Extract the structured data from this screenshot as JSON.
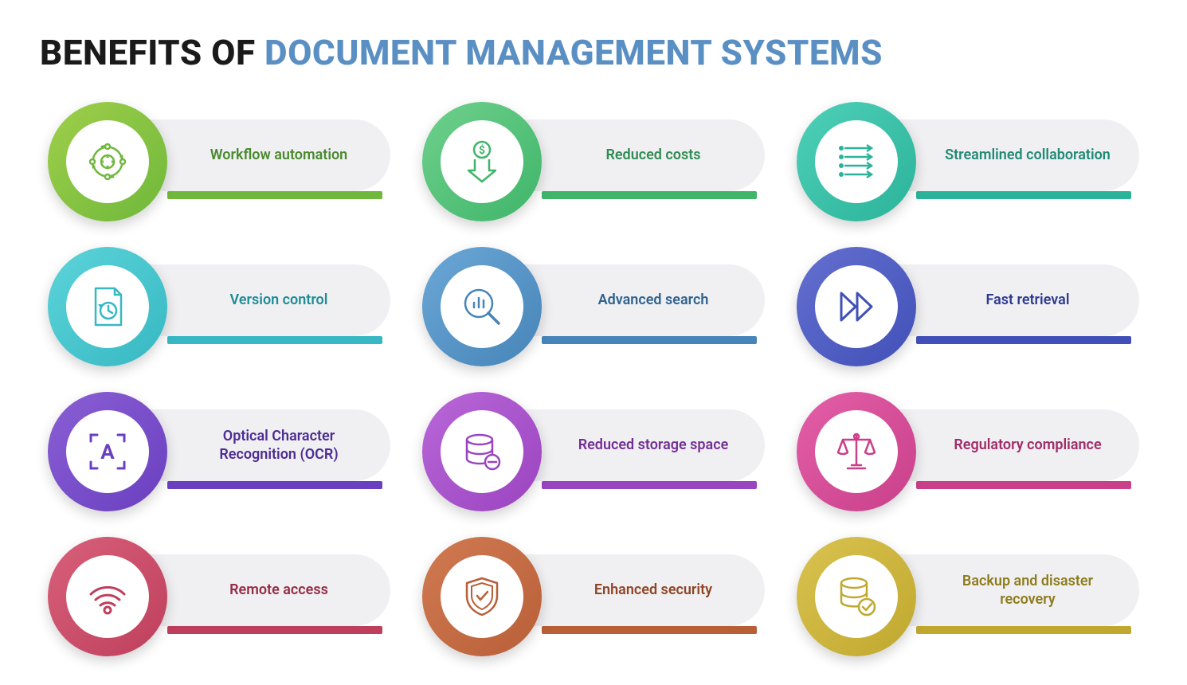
{
  "title": {
    "part1": "BENEFITS OF ",
    "part2": "DOCUMENT MANAGEMENT SYSTEMS",
    "color_dark": "#1a1a1a",
    "color_blue": "#5a8fc4"
  },
  "layout": {
    "columns": 3,
    "rows": 4,
    "pill_bg": "#f0f0f2",
    "circle_inner_bg": "#ffffff"
  },
  "benefits": [
    {
      "label": "Workflow automation",
      "icon": "workflow-icon",
      "ring_gradient": [
        "#9fcf4a",
        "#6fb83b"
      ],
      "accent": "#6fb83b",
      "icon_color": "#6fb83b",
      "text_color": "#4a8a2e"
    },
    {
      "label": "Reduced costs",
      "icon": "cost-down-icon",
      "ring_gradient": [
        "#6fd08c",
        "#3fb56a"
      ],
      "accent": "#3fb56a",
      "icon_color": "#3fb56a",
      "text_color": "#2f8c53"
    },
    {
      "label": "Streamlined collaboration",
      "icon": "streamline-icon",
      "ring_gradient": [
        "#4fd0b8",
        "#2bb39a"
      ],
      "accent": "#2bb39a",
      "icon_color": "#2bb39a",
      "text_color": "#1f8a76"
    },
    {
      "label": "Version control",
      "icon": "version-icon",
      "ring_gradient": [
        "#5cd4d9",
        "#37b8c3"
      ],
      "accent": "#37b8c3",
      "icon_color": "#37b8c3",
      "text_color": "#1f8c97"
    },
    {
      "label": "Advanced search",
      "icon": "search-icon",
      "ring_gradient": [
        "#6ba8d6",
        "#4784b8"
      ],
      "accent": "#4784b8",
      "icon_color": "#4784b8",
      "text_color": "#2f6290"
    },
    {
      "label": "Fast retrieval",
      "icon": "fast-forward-icon",
      "ring_gradient": [
        "#6470d0",
        "#4150b8"
      ],
      "accent": "#4150b8",
      "icon_color": "#4150b8",
      "text_color": "#2d3a90"
    },
    {
      "label": "Optical Character Recognition (OCR)",
      "icon": "ocr-icon",
      "ring_gradient": [
        "#8a5fd4",
        "#6a3fc0"
      ],
      "accent": "#6a3fc0",
      "icon_color": "#6a3fc0",
      "text_color": "#4d2c95"
    },
    {
      "label": "Reduced storage space",
      "icon": "storage-minus-icon",
      "ring_gradient": [
        "#b967d8",
        "#9a44c0"
      ],
      "accent": "#9a44c0",
      "icon_color": "#9a44c0",
      "text_color": "#742f95"
    },
    {
      "label": "Regulatory compliance",
      "icon": "scales-icon",
      "ring_gradient": [
        "#e35fa8",
        "#c93f8a"
      ],
      "accent": "#c93f8a",
      "icon_color": "#c93f8a",
      "text_color": "#a02c6a"
    },
    {
      "label": "Remote access",
      "icon": "wifi-icon",
      "ring_gradient": [
        "#d8607a",
        "#be3f5c"
      ],
      "accent": "#be3f5c",
      "icon_color": "#be3f5c",
      "text_color": "#952c44"
    },
    {
      "label": "Enhanced security",
      "icon": "shield-icon",
      "ring_gradient": [
        "#d17a52",
        "#b85f38"
      ],
      "accent": "#b85f38",
      "icon_color": "#b85f38",
      "text_color": "#8f4526"
    },
    {
      "label": "Backup and disaster recovery",
      "icon": "backup-icon",
      "ring_gradient": [
        "#d9c24f",
        "#c0a82f"
      ],
      "accent": "#c0a82f",
      "icon_color": "#c0a82f",
      "text_color": "#8f7c1c"
    }
  ]
}
